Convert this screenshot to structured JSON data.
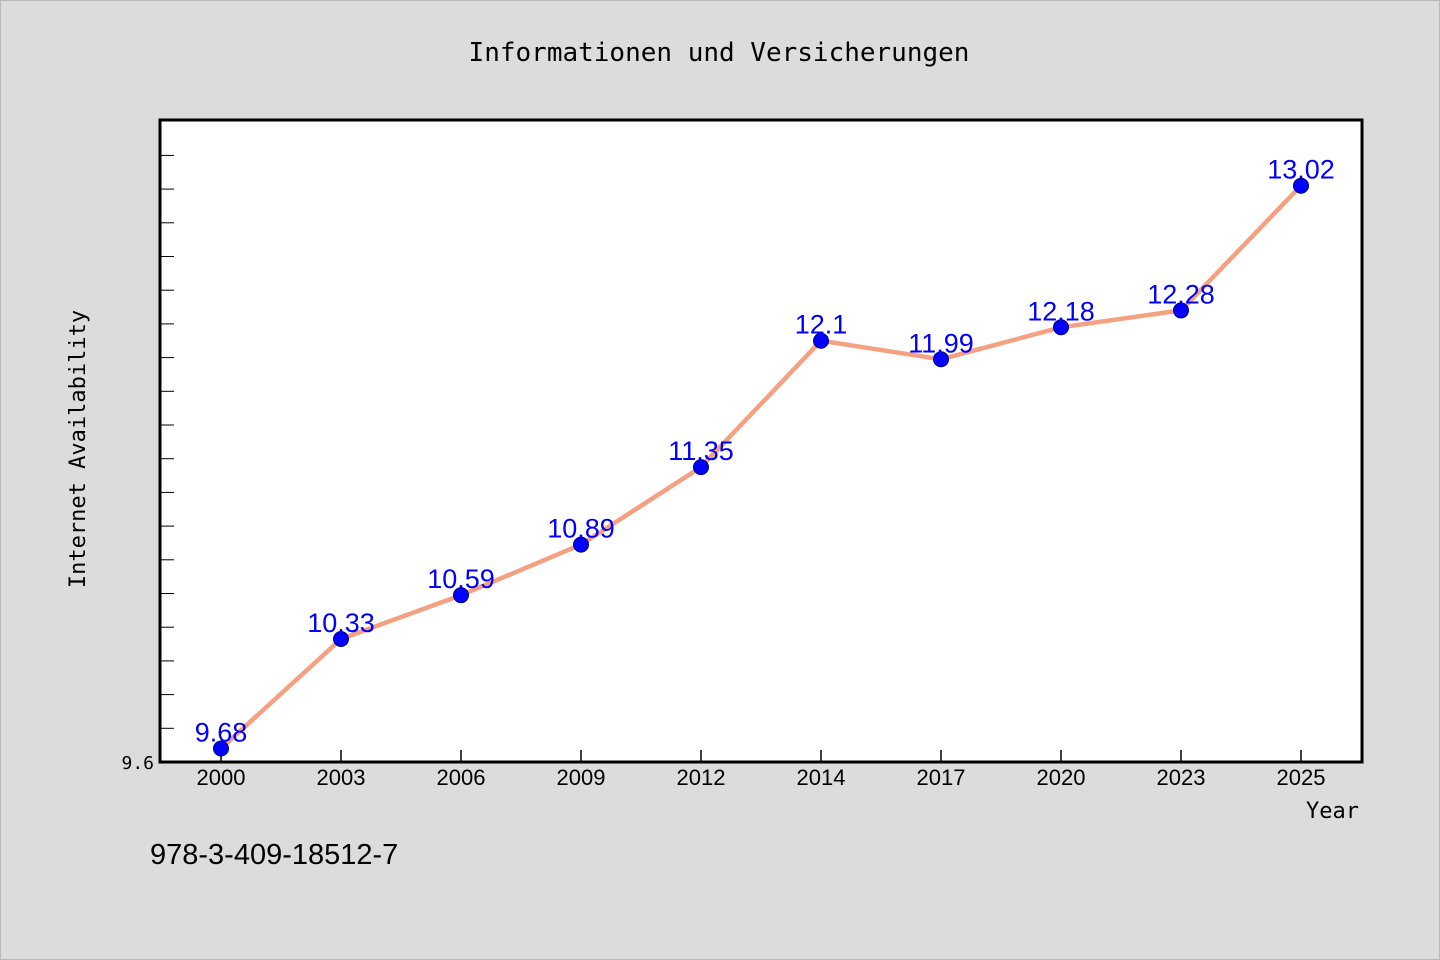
{
  "chart_data": {
    "type": "line",
    "title": "Informationen und Versicherungen",
    "xlabel": "Year",
    "ylabel": "Internet Availability",
    "categories": [
      "2000",
      "2003",
      "2006",
      "2009",
      "2012",
      "2014",
      "2017",
      "2020",
      "2023",
      "2025"
    ],
    "series": [
      {
        "values": [
          9.68,
          10.33,
          10.59,
          10.89,
          11.35,
          12.1,
          11.99,
          12.18,
          12.28,
          13.02
        ]
      }
    ],
    "data_labels": [
      "9.68",
      "10.33",
      "10.59",
      "10.89",
      "11.35",
      "12.1",
      "11.99",
      "12.18",
      "12.28",
      "13.02"
    ],
    "y_tick_labels": [
      "9.6"
    ],
    "ylim": [
      9.6,
      13.41
    ],
    "grid": false,
    "legend": "none",
    "colors": {
      "line": "#f4a081",
      "marker": "#0000ff",
      "data_label": "#0000ff",
      "plot_background": "#ffffff",
      "page_background": "#dcdcdc"
    }
  },
  "footer": {
    "isbn": "978-3-409-18512-7"
  }
}
